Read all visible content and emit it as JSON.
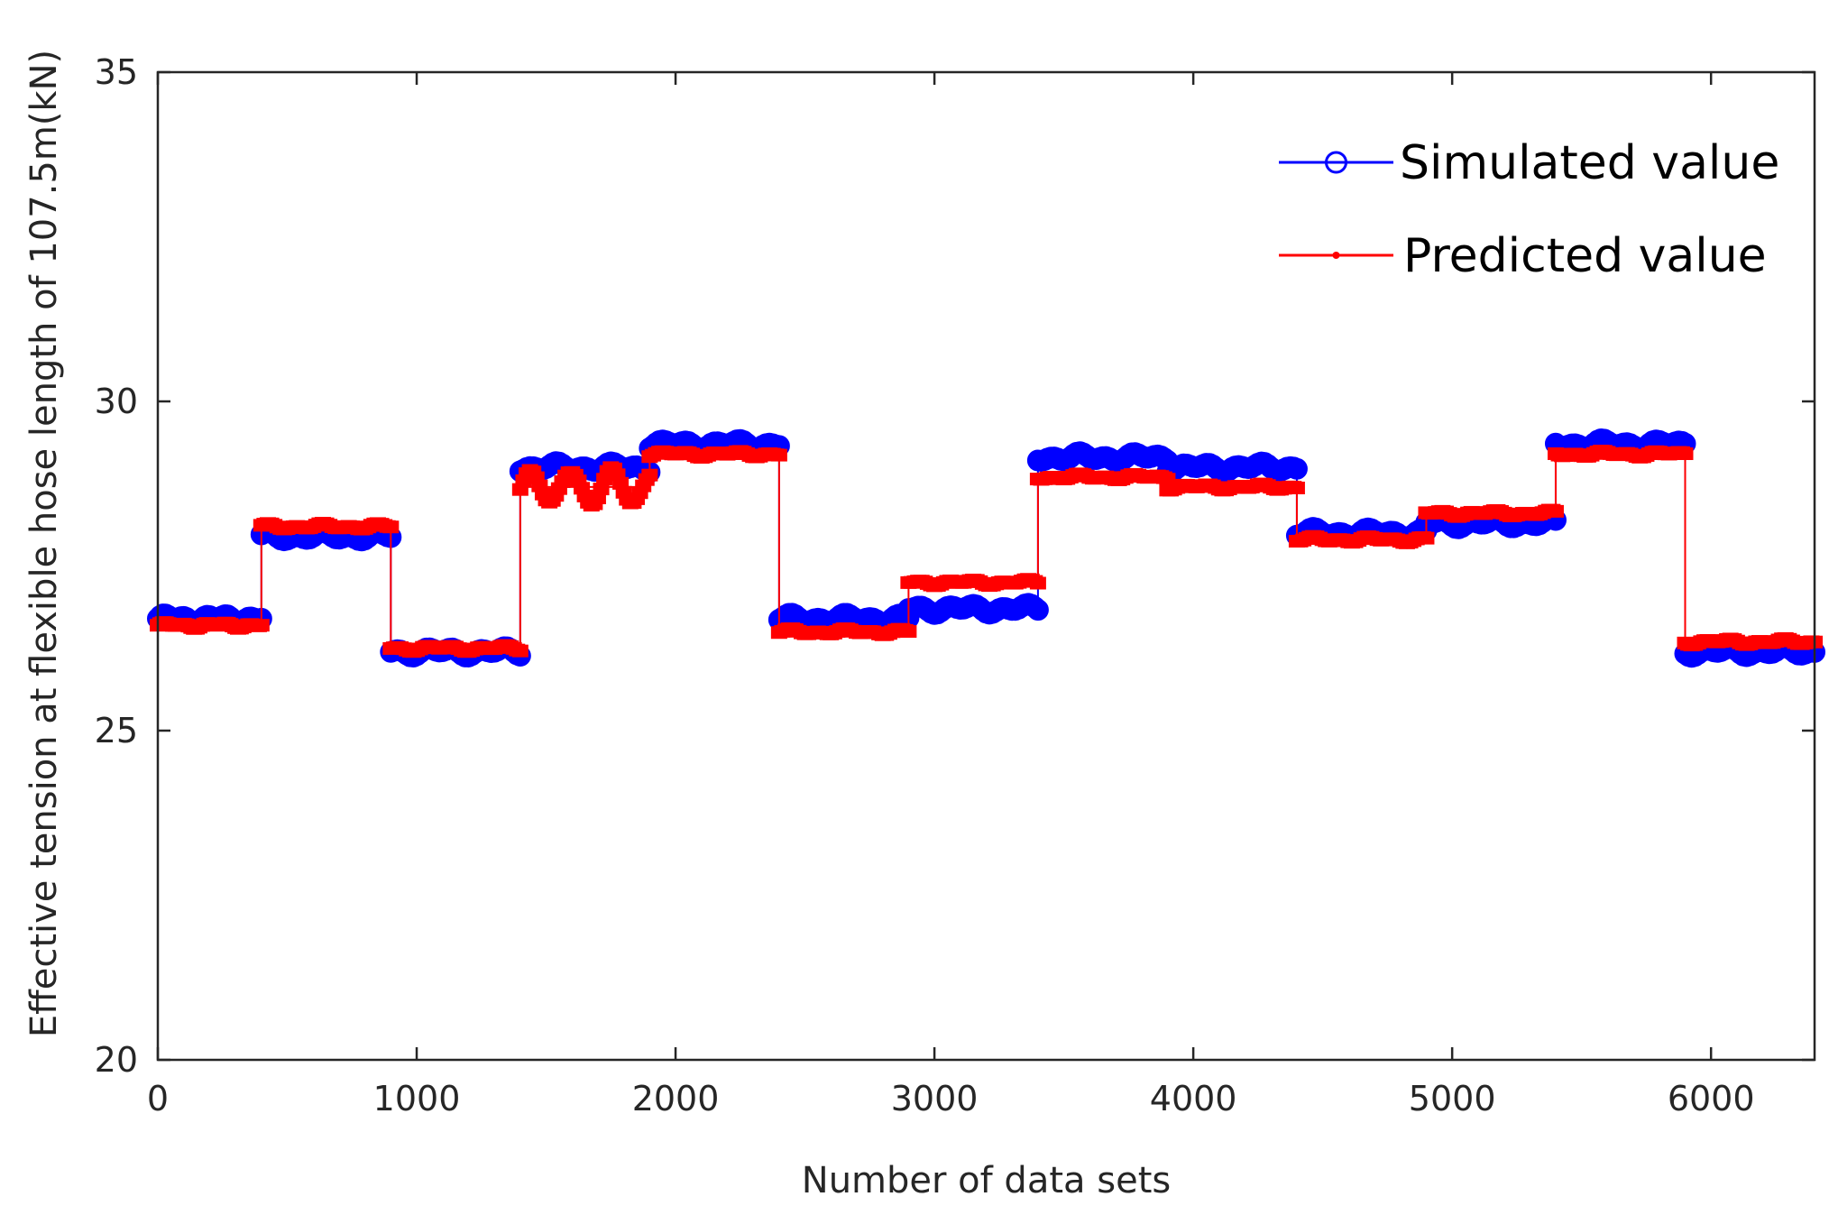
{
  "chart_data": {
    "type": "line",
    "xlabel": "Number of data sets",
    "ylabel": "Effective tension at flexible hose length of 107.5m(kN)",
    "xlim": [
      0,
      6400
    ],
    "ylim": [
      20,
      35
    ],
    "xticks": [
      0,
      1000,
      2000,
      3000,
      4000,
      5000,
      6000
    ],
    "yticks": [
      20,
      25,
      30,
      35
    ],
    "xtick_labels": [
      "0",
      "1000",
      "2000",
      "3000",
      "4000",
      "5000",
      "6000"
    ],
    "ytick_labels": [
      "20",
      "25",
      "30",
      "35"
    ],
    "legend_position": "top-right",
    "series": [
      {
        "name": "Simulated value",
        "color": "#0000ff",
        "marker": "circle",
        "segments": [
          {
            "x_start": 0,
            "x_end": 400,
            "value": 26.7
          },
          {
            "x_start": 400,
            "x_end": 900,
            "value": 27.95
          },
          {
            "x_start": 900,
            "x_end": 1400,
            "value": 26.2
          },
          {
            "x_start": 1400,
            "x_end": 1900,
            "value": 29.0
          },
          {
            "x_start": 1900,
            "x_end": 2400,
            "value": 29.35
          },
          {
            "x_start": 2400,
            "x_end": 2900,
            "value": 26.7
          },
          {
            "x_start": 2900,
            "x_end": 3400,
            "value": 26.85
          },
          {
            "x_start": 3400,
            "x_end": 3900,
            "value": 29.15
          },
          {
            "x_start": 3900,
            "x_end": 4400,
            "value": 29.0
          },
          {
            "x_start": 4400,
            "x_end": 4900,
            "value": 28.0
          },
          {
            "x_start": 4900,
            "x_end": 5400,
            "value": 28.15
          },
          {
            "x_start": 5400,
            "x_end": 5900,
            "value": 29.35
          },
          {
            "x_start": 5900,
            "x_end": 6400,
            "value": 26.2
          }
        ]
      },
      {
        "name": "Predicted value",
        "color": "#ff0000",
        "marker": "point",
        "segments": [
          {
            "x_start": 0,
            "x_end": 400,
            "value": 26.6
          },
          {
            "x_start": 400,
            "x_end": 900,
            "value": 28.1
          },
          {
            "x_start": 900,
            "x_end": 1400,
            "value": 26.25
          },
          {
            "x_start": 1400,
            "x_end": 1900,
            "value": 28.7
          },
          {
            "x_start": 1900,
            "x_end": 2400,
            "value": 29.2
          },
          {
            "x_start": 2400,
            "x_end": 2900,
            "value": 26.5
          },
          {
            "x_start": 2900,
            "x_end": 3400,
            "value": 27.25
          },
          {
            "x_start": 3400,
            "x_end": 3900,
            "value": 28.85
          },
          {
            "x_start": 3900,
            "x_end": 4400,
            "value": 28.7
          },
          {
            "x_start": 4400,
            "x_end": 4900,
            "value": 27.9
          },
          {
            "x_start": 4900,
            "x_end": 5400,
            "value": 28.3
          },
          {
            "x_start": 5400,
            "x_end": 5900,
            "value": 29.2
          },
          {
            "x_start": 5900,
            "x_end": 6400,
            "value": 26.35
          }
        ]
      }
    ]
  }
}
